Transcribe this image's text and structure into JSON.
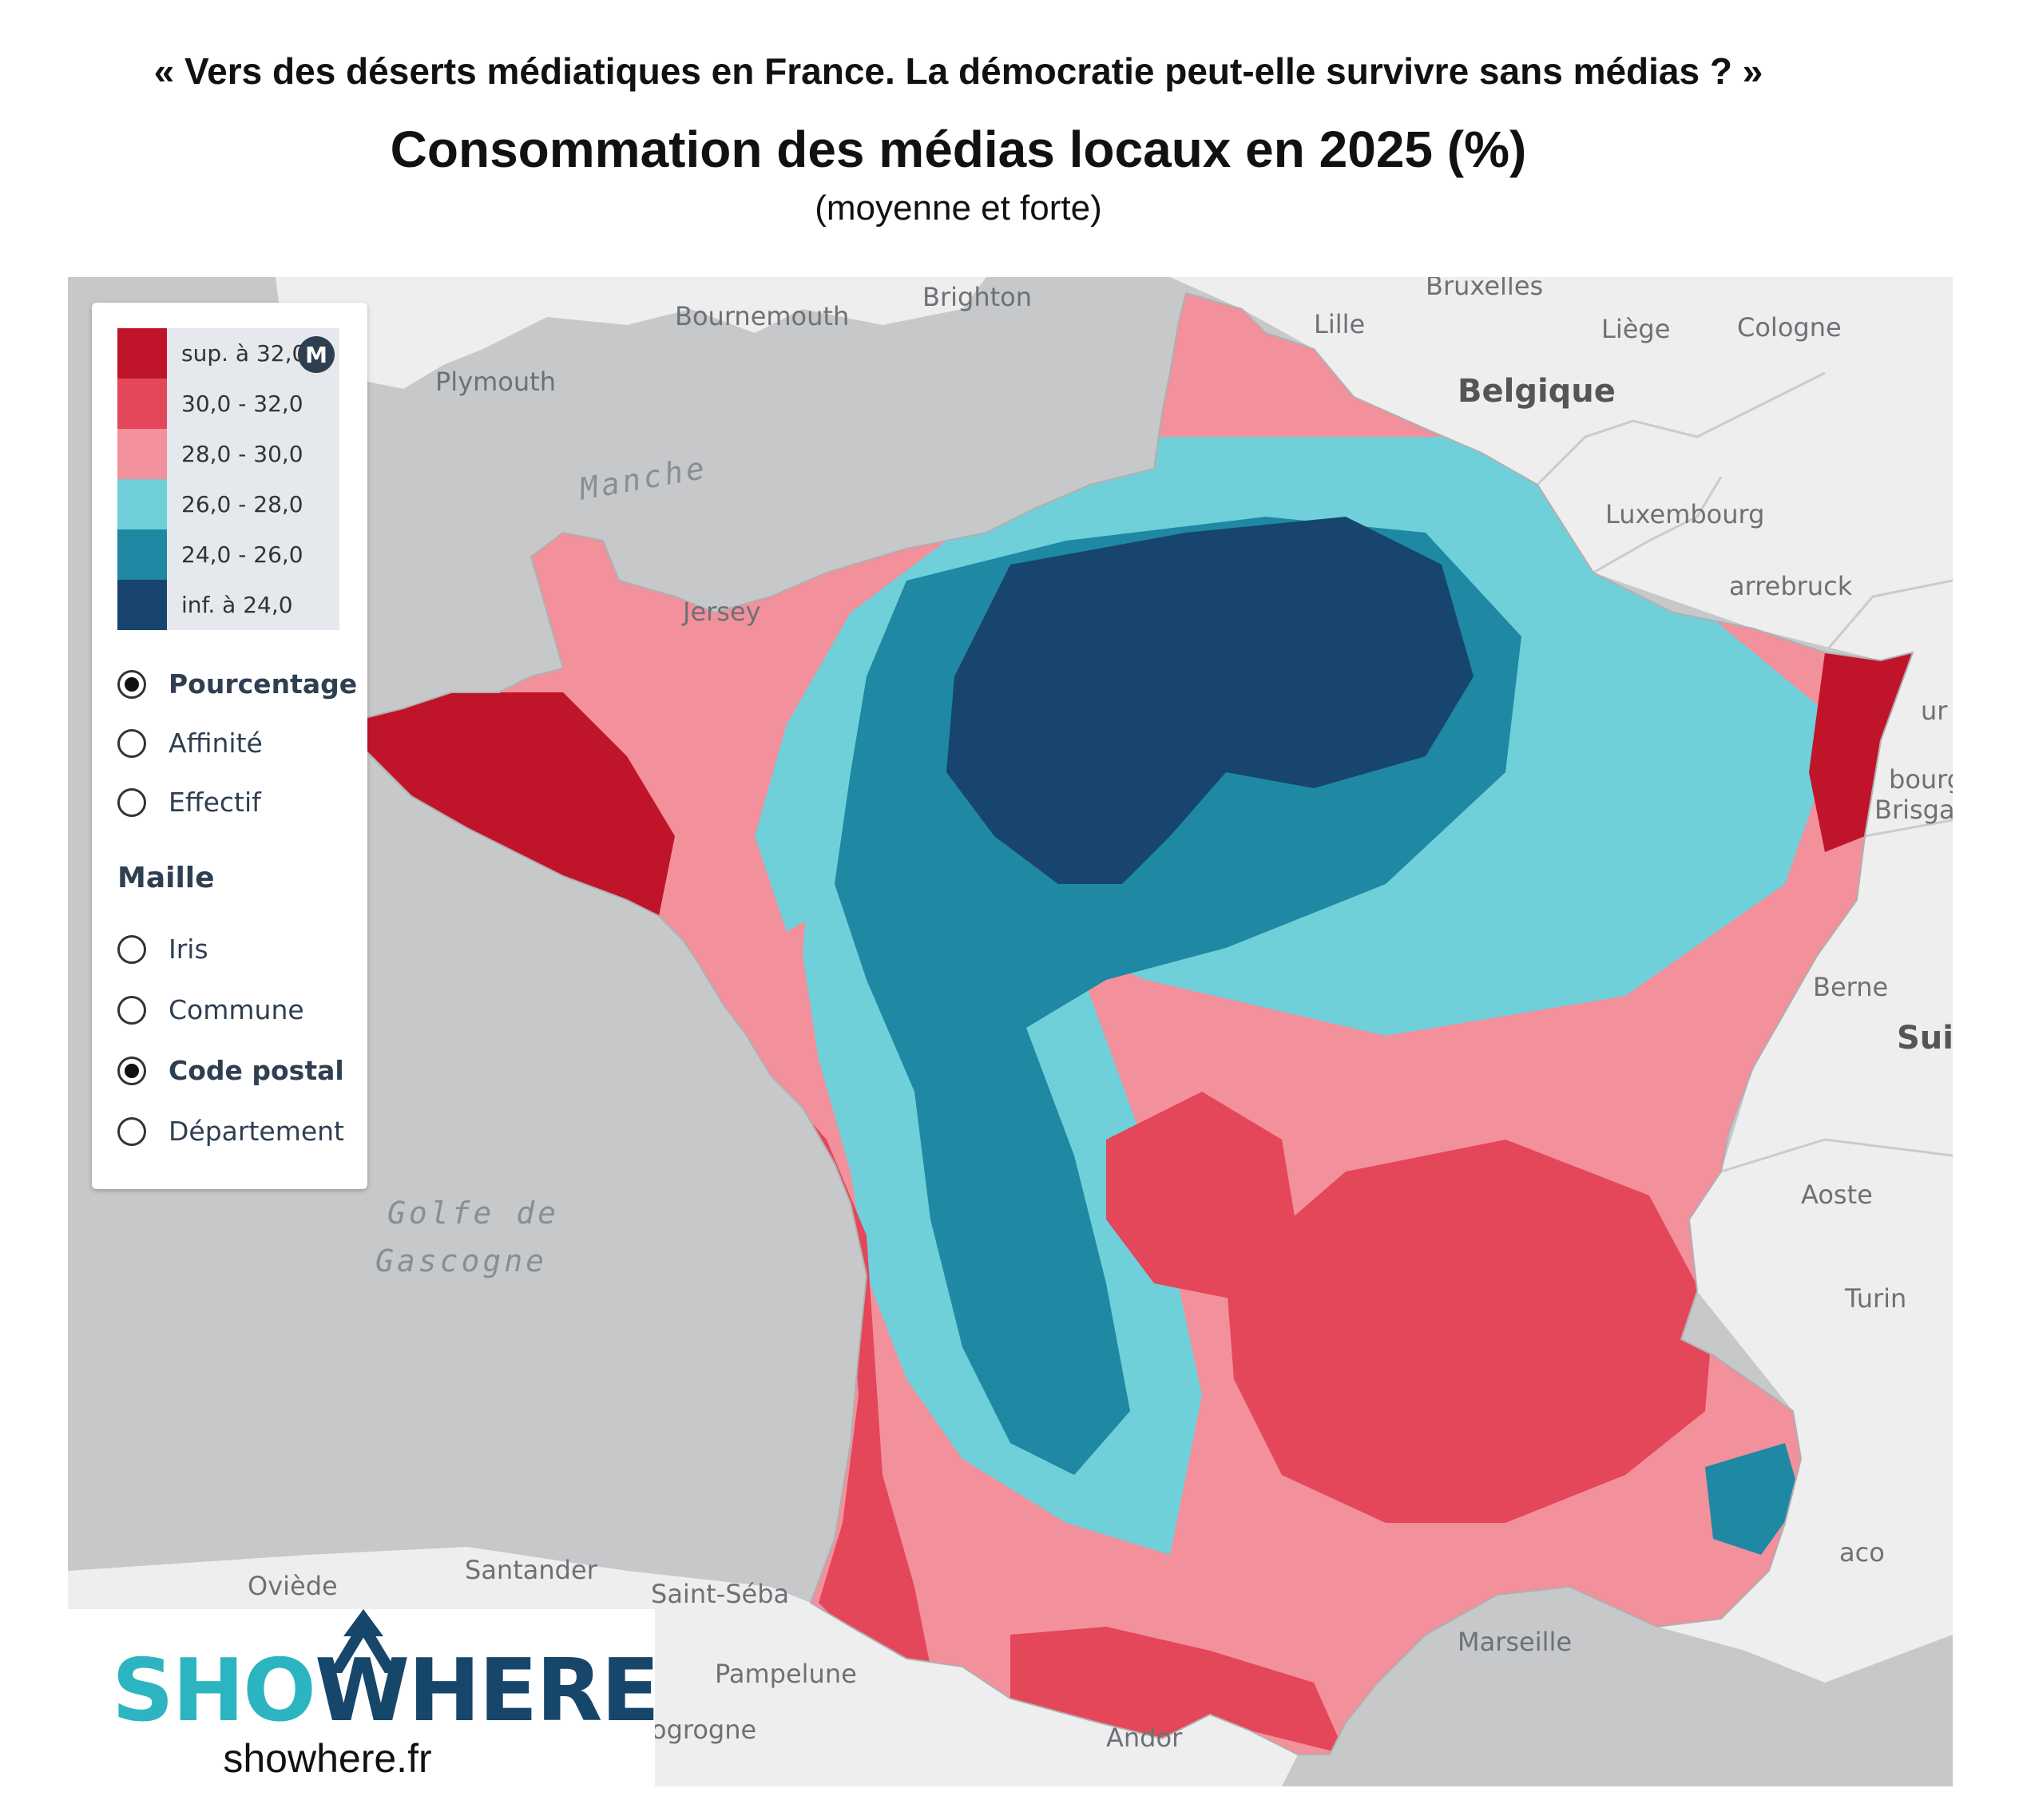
{
  "header": {
    "suptitle": "«  Vers des déserts médiatiques en France. La démocratie peut-elle survivre sans médias ? »",
    "title": "Consommation des médias locaux en 2025 (%)",
    "subtitle": "(moyenne et forte)"
  },
  "legend": {
    "badge": "M",
    "classes": [
      {
        "label": "sup. à 32,0",
        "color": "#c0142a"
      },
      {
        "label": "30,0 - 32,0",
        "color": "#e4465a"
      },
      {
        "label": "28,0 - 30,0",
        "color": "#f2909b"
      },
      {
        "label": "26,0 - 28,0",
        "color": "#6fd0da"
      },
      {
        "label": "24,0 - 26,0",
        "color": "#1f88a3"
      },
      {
        "label": "inf. à 24,0",
        "color": "#17456d"
      }
    ],
    "measure_options": [
      {
        "label": "Pourcentage",
        "selected": true
      },
      {
        "label": "Affinité",
        "selected": false
      },
      {
        "label": "Effectif",
        "selected": false
      }
    ],
    "mesh_title": "Maille",
    "mesh_options": [
      {
        "label": "Iris",
        "selected": false
      },
      {
        "label": "Commune",
        "selected": false
      },
      {
        "label": "Code postal",
        "selected": true
      },
      {
        "label": "Département",
        "selected": false
      }
    ]
  },
  "map": {
    "colors": {
      "sea": "#c6c8ca",
      "land": "#eeeeee",
      "france_outline": "#b0b0b0"
    },
    "places": {
      "bruxelles": "Bruxelles",
      "brighton": "Brighton",
      "bournemouth": "Bournemouth",
      "lille": "Lille",
      "liege": "Liège",
      "cologne": "Cologne",
      "plymouth": "Plymouth",
      "belgique": "Belgique",
      "manche": "Manche",
      "luxembourg": "Luxembourg",
      "sarrebruck": "arrebruck",
      "jersey": "Jersey",
      "berne": "Berne",
      "suisse": "Suis",
      "aoste": "Aoste",
      "turin": "Turin",
      "golfe1": "Golfe de",
      "golfe2": "Gascogne",
      "santander": "Santander",
      "oviede": "Oviède",
      "saint_seb": "Saint-Séba",
      "pampelune": "Pampelune",
      "logrogne": "ogrogne",
      "andorre": "Andor",
      "marseille": "Marseille",
      "monaco": "aco",
      "fribourg": "bourg",
      "brisgau": "Brisga",
      "strasbourg": "ur"
    }
  },
  "brand": {
    "logo_part1": "SHO",
    "logo_part2": "WHERE",
    "url": "showhere.fr"
  }
}
